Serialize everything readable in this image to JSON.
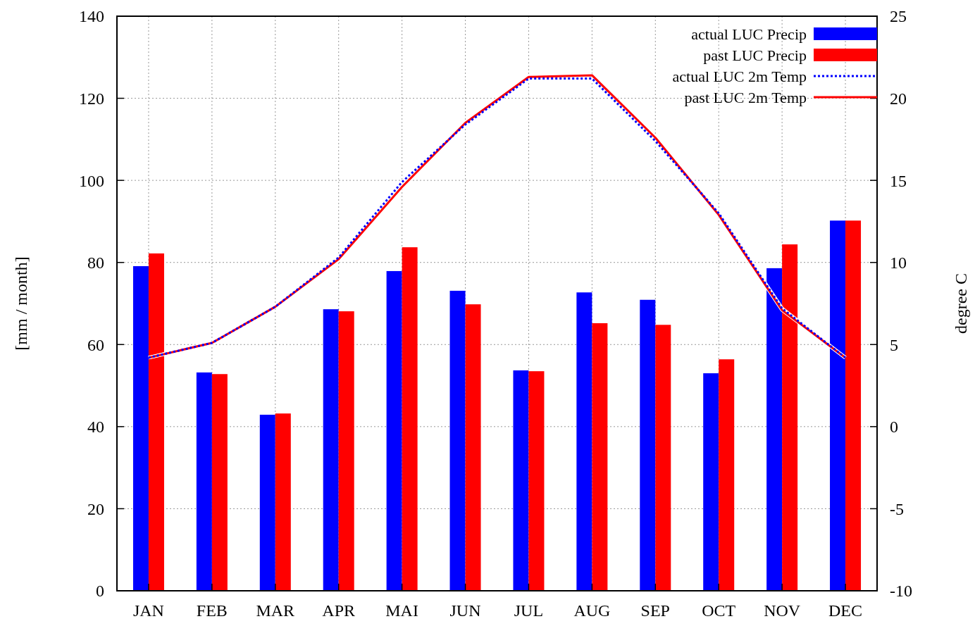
{
  "chart_data": {
    "type": "bar",
    "ylabel": "[mm / month]",
    "y2label": "degree C",
    "categories": [
      "JAN",
      "FEB",
      "MAR",
      "APR",
      "MAI",
      "JUN",
      "JUL",
      "AUG",
      "SEP",
      "OCT",
      "NOV",
      "DEC"
    ],
    "series": [
      {
        "name": "actual LUC Precip",
        "color": "#0000ff",
        "values": [
          79.1,
          53.2,
          42.9,
          68.6,
          77.9,
          73.1,
          53.7,
          72.7,
          70.9,
          53.0,
          78.6,
          90.2
        ]
      },
      {
        "name": "past LUC Precip",
        "color": "#ff0000",
        "values": [
          82.2,
          52.8,
          43.2,
          68.1,
          83.7,
          69.8,
          53.5,
          65.2,
          64.8,
          56.4,
          84.4,
          90.2
        ]
      },
      {
        "name": "actual LUC 2m Temp",
        "type": "line",
        "axis": "y2",
        "color": "#0000ff",
        "line_style": "dotted",
        "values": [
          4.2,
          5.1,
          7.3,
          10.3,
          14.9,
          18.4,
          21.2,
          21.2,
          17.4,
          13.0,
          7.2,
          4.2
        ]
      },
      {
        "name": "past LUC 2m Temp",
        "type": "line",
        "axis": "y2",
        "color": "#ff0000",
        "line_style": "solid",
        "values": [
          4.2,
          5.1,
          7.3,
          10.2,
          14.6,
          18.5,
          21.3,
          21.4,
          17.6,
          12.9,
          7.1,
          4.2
        ]
      }
    ],
    "ylim": [
      0,
      140
    ],
    "yticks": [
      0,
      20,
      40,
      60,
      80,
      100,
      120,
      140
    ],
    "y2lim": [
      -10,
      25
    ],
    "y2ticks": [
      -10,
      -5,
      0,
      5,
      10,
      15,
      20,
      25
    ],
    "grid": true,
    "legend": "top right"
  }
}
